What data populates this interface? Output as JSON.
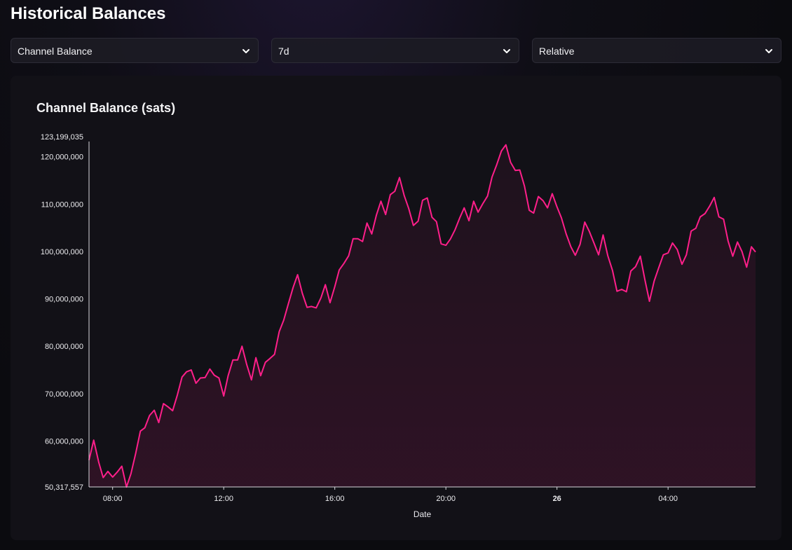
{
  "header": {
    "title": "Historical Balances"
  },
  "controls": {
    "metric": {
      "selected": "Channel Balance",
      "icon": "chevron-down-icon"
    },
    "range": {
      "selected": "7d",
      "icon": "chevron-down-icon"
    },
    "mode": {
      "selected": "Relative",
      "icon": "chevron-down-icon"
    }
  },
  "colors": {
    "accent": "#ff1f8a",
    "background": "#0b0b0f",
    "card": "#121117"
  },
  "chart_data": {
    "type": "area",
    "title": "Channel Balance (sats)",
    "xlabel": "Date",
    "ylabel": "",
    "ylim": [
      50317557,
      123199035
    ],
    "y_ticks": [
      {
        "value": 50317557,
        "label": "50,317,557"
      },
      {
        "value": 60000000,
        "label": "60,000,000"
      },
      {
        "value": 70000000,
        "label": "70,000,000"
      },
      {
        "value": 80000000,
        "label": "80,000,000"
      },
      {
        "value": 90000000,
        "label": "90,000,000"
      },
      {
        "value": 100000000,
        "label": "100,000,000"
      },
      {
        "value": 110000000,
        "label": "110,000,000"
      },
      {
        "value": 120000000,
        "label": "120,000,000"
      },
      {
        "value": 123199035,
        "label": "123,199,035"
      }
    ],
    "x_range_hours": [
      7.15,
      31.15
    ],
    "x_ticks": [
      {
        "hour": 8,
        "label": "08:00",
        "bold": false
      },
      {
        "hour": 12,
        "label": "12:00",
        "bold": false
      },
      {
        "hour": 16,
        "label": "16:00",
        "bold": false
      },
      {
        "hour": 20,
        "label": "20:00",
        "bold": false
      },
      {
        "hour": 24,
        "label": "26",
        "bold": true
      },
      {
        "hour": 28,
        "label": "04:00",
        "bold": false
      }
    ],
    "grid": false,
    "series": [
      {
        "x": [
          7.15,
          7.32,
          7.5,
          7.66,
          7.83,
          8,
          8.16,
          8.33,
          8.5,
          8.66,
          8.83,
          9,
          9.16,
          9.33,
          9.5,
          9.66,
          9.83,
          10,
          10.16,
          10.33,
          10.5,
          10.66,
          10.83,
          11,
          11.16,
          11.33,
          11.5,
          11.66,
          11.83,
          12,
          12.16,
          12.33,
          12.5,
          12.66,
          12.83,
          13,
          13.16,
          13.33,
          13.5,
          13.66,
          13.83,
          14,
          14.16,
          14.33,
          14.5,
          14.66,
          14.83,
          15,
          15.16,
          15.33,
          15.5,
          15.66,
          15.83,
          16,
          16.16,
          16.33,
          16.5,
          16.66,
          16.83,
          17,
          17.16,
          17.33,
          17.5,
          17.66,
          17.83,
          18,
          18.16,
          18.33,
          18.5,
          18.66,
          18.83,
          19,
          19.16,
          19.33,
          19.5,
          19.66,
          19.83,
          20,
          20.16,
          20.33,
          20.5,
          20.66,
          20.83,
          21,
          21.16,
          21.33,
          21.5,
          21.66,
          21.83,
          22,
          22.16,
          22.33,
          22.5,
          22.66,
          22.83,
          23,
          23.16,
          23.33,
          23.5,
          23.66,
          23.83,
          24,
          24.16,
          24.33,
          24.5,
          24.66,
          24.83,
          25,
          25.16,
          25.33,
          25.5,
          25.66,
          25.83,
          26,
          26.16,
          26.33,
          26.5,
          26.66,
          26.83,
          27,
          27.16,
          27.33,
          27.5,
          27.66,
          27.83,
          28,
          28.16,
          28.33,
          28.5,
          28.66,
          28.83,
          29,
          29.16,
          29.33,
          29.5,
          29.66,
          29.83,
          30,
          30.16,
          30.33,
          30.5,
          30.66,
          30.83,
          31,
          31.15
        ],
        "y": [
          56000000,
          60200000,
          55500000,
          52300000,
          53600000,
          52400000,
          53400000,
          54700000,
          50300000,
          53100000,
          57400000,
          62100000,
          62800000,
          65400000,
          66500000,
          63900000,
          67900000,
          67200000,
          66400000,
          69700000,
          73500000,
          74600000,
          75000000,
          72200000,
          73300000,
          73400000,
          75200000,
          73900000,
          73300000,
          69500000,
          73800000,
          77100000,
          77100000,
          80000000,
          76100000,
          72900000,
          77600000,
          73800000,
          76600000,
          77400000,
          78300000,
          83100000,
          85500000,
          89000000,
          92400000,
          95100000,
          91200000,
          88200000,
          88400000,
          88100000,
          90200000,
          93000000,
          89200000,
          92600000,
          96100000,
          97500000,
          99100000,
          102700000,
          102700000,
          102100000,
          106000000,
          103700000,
          107700000,
          110600000,
          107800000,
          112000000,
          112700000,
          115600000,
          111800000,
          109100000,
          105500000,
          106400000,
          110800000,
          111300000,
          107200000,
          106300000,
          101600000,
          101300000,
          102600000,
          104600000,
          107100000,
          109200000,
          106500000,
          110600000,
          108300000,
          110100000,
          111700000,
          115700000,
          118300000,
          121200000,
          122500000,
          118800000,
          117100000,
          117200000,
          113800000,
          108700000,
          108100000,
          111600000,
          110700000,
          109200000,
          112200000,
          109400000,
          107100000,
          103700000,
          101000000,
          99200000,
          101500000,
          106200000,
          104300000,
          101800000,
          99300000,
          103500000,
          99100000,
          96000000,
          91600000,
          92000000,
          91500000,
          95900000,
          96800000,
          99000000,
          94200000,
          89500000,
          93800000,
          96500000,
          99300000,
          99700000,
          101800000,
          100400000,
          97300000,
          99300000,
          104300000,
          104900000,
          107300000,
          108000000,
          109600000,
          111400000,
          107300000,
          106800000,
          102200000,
          99000000,
          102000000,
          100000000,
          96700000,
          101000000,
          99900000
        ]
      }
    ]
  }
}
